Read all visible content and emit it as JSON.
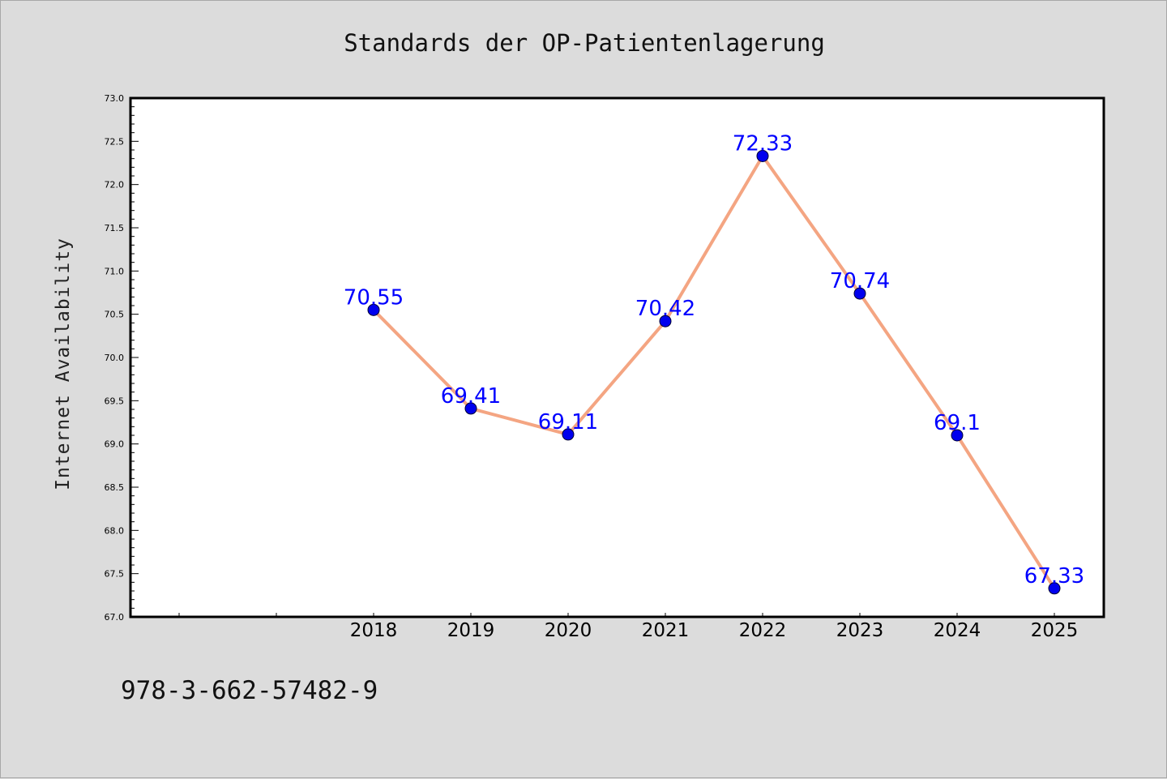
{
  "chart_data": {
    "type": "line",
    "title": "Standards der OP-Patientenlagerung",
    "xlabel": "",
    "ylabel": "Internet Availability",
    "x": [
      "2018",
      "2019",
      "2020",
      "2021",
      "2022",
      "2023",
      "2024",
      "2025"
    ],
    "series": [
      {
        "values": [
          70.55,
          69.41,
          69.11,
          70.42,
          72.33,
          70.74,
          69.1,
          67.33
        ],
        "labels": [
          "70.55",
          "69.41",
          "69.11",
          "70.42",
          "72.33",
          "70.74",
          "69.1",
          "67.33"
        ],
        "line_color": "#f4a582",
        "marker_color": "#0000ee",
        "label_color": "#0000ff"
      }
    ],
    "ylim": [
      67.0,
      73.0
    ],
    "yticks": [
      "67.0",
      "67.5",
      "68.0",
      "68.5",
      "69.0",
      "69.5",
      "70.0",
      "70.5",
      "71.0",
      "71.5",
      "72.0",
      "72.5",
      "73.0"
    ],
    "grid": false,
    "legend": "none"
  },
  "footer": {
    "isbn": "978-3-662-57482-9"
  },
  "colors": {
    "background": "#dcdcdc",
    "plot_background": "#ffffff"
  }
}
